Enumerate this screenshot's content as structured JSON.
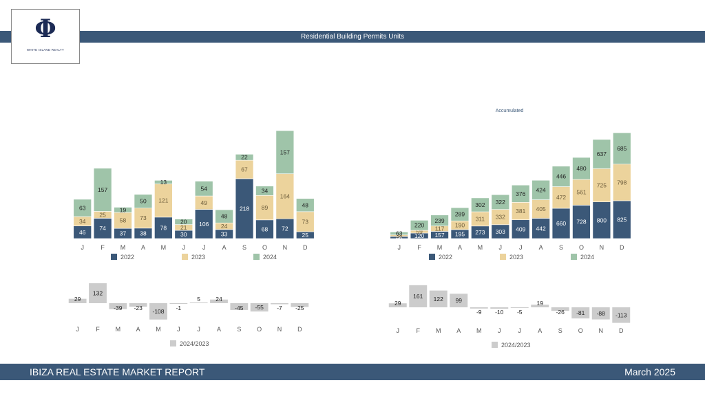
{
  "header": {
    "title": "Residential Building Permits Units",
    "logo_text": "WHITE ISLAND REALTY",
    "logo_glyph": "Φ"
  },
  "footer": {
    "left": "IBIZA REAL ESTATE MARKET REPORT",
    "right": "March 2025"
  },
  "colors": {
    "2022": "#3b5878",
    "2023": "#ecd39c",
    "2024": "#9fc4a9",
    "diff": "#cccccc",
    "band": "#3b5878"
  },
  "chart_data": [
    {
      "id": "monthly",
      "type": "bar",
      "stacked": true,
      "title": "",
      "categories": [
        "J",
        "F",
        "M",
        "A",
        "M",
        "J",
        "J",
        "A",
        "S",
        "O",
        "N",
        "D"
      ],
      "series": [
        {
          "name": "2022",
          "values": [
            46,
            74,
            37,
            38,
            78,
            30,
            106,
            33,
            218,
            68,
            72,
            25
          ]
        },
        {
          "name": "2023",
          "values": [
            34,
            25,
            58,
            73,
            121,
            21,
            49,
            24,
            67,
            89,
            164,
            73
          ]
        },
        {
          "name": "2024",
          "values": [
            63,
            157,
            19,
            50,
            13,
            20,
            54,
            48,
            22,
            34,
            157,
            48
          ]
        }
      ],
      "legend": [
        "2022",
        "2023",
        "2024"
      ],
      "legend_position": "bottom",
      "grid": false
    },
    {
      "id": "accumulated",
      "type": "bar",
      "stacked": true,
      "title": "Accumulated",
      "categories": [
        "J",
        "F",
        "M",
        "A",
        "M",
        "J",
        "J",
        "A",
        "S",
        "O",
        "N",
        "D"
      ],
      "series": [
        {
          "name": "2022",
          "values": [
            46,
            120,
            157,
            195,
            273,
            303,
            409,
            442,
            660,
            728,
            800,
            825
          ]
        },
        {
          "name": "2023",
          "values": [
            34,
            59,
            117,
            190,
            311,
            332,
            381,
            405,
            472,
            561,
            725,
            798
          ]
        },
        {
          "name": "2024",
          "values": [
            63,
            220,
            239,
            289,
            302,
            322,
            376,
            424,
            446,
            480,
            637,
            685
          ]
        }
      ],
      "legend": [
        "2022",
        "2023",
        "2024"
      ],
      "legend_position": "bottom",
      "grid": false
    },
    {
      "id": "monthly-diff",
      "type": "bar",
      "title": "",
      "categories": [
        "J",
        "F",
        "M",
        "A",
        "M",
        "J",
        "J",
        "A",
        "S",
        "O",
        "N",
        "D"
      ],
      "series": [
        {
          "name": "2024/2023",
          "values": [
            29,
            132,
            -39,
            -23,
            -108,
            -1,
            5,
            24,
            -45,
            -55,
            -7,
            -25
          ]
        }
      ],
      "legend": [
        "2024/2023"
      ],
      "legend_position": "bottom",
      "grid": false
    },
    {
      "id": "accumulated-diff",
      "type": "bar",
      "title": "",
      "categories": [
        "J",
        "F",
        "M",
        "A",
        "M",
        "J",
        "J",
        "A",
        "S",
        "O",
        "N",
        "D"
      ],
      "series": [
        {
          "name": "2024/2023",
          "values": [
            29,
            161,
            122,
            99,
            -9,
            -10,
            -5,
            19,
            -26,
            -81,
            -88,
            -113
          ]
        }
      ],
      "legend": [
        "2024/2023"
      ],
      "legend_position": "bottom",
      "grid": false
    }
  ]
}
